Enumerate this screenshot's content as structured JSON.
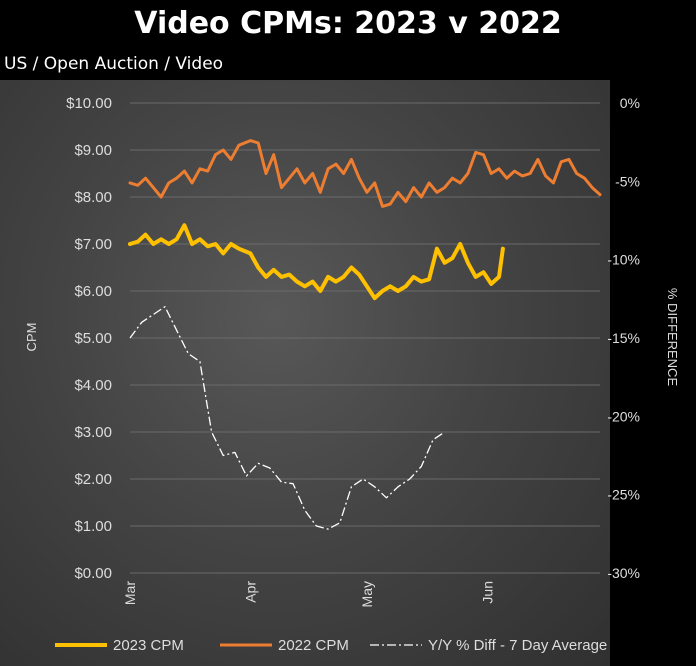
{
  "chart_data": {
    "type": "line",
    "title": "Video CPMs: 2023 v 2022",
    "subtitle": "US / Open Auction / Video",
    "ylabel": "CPM",
    "y2label": "% DIFFERENCE",
    "ylim": [
      0,
      10
    ],
    "y2lim": [
      -30,
      0
    ],
    "yticks": [
      "$0.00",
      "$1.00",
      "$2.00",
      "$3.00",
      "$4.00",
      "$5.00",
      "$6.00",
      "$7.00",
      "$8.00",
      "$9.00",
      "$10.00"
    ],
    "y2ticks": [
      "-30%",
      "-25%",
      "-20%",
      "-15%",
      "-10%",
      "-5%",
      "0%"
    ],
    "xlim": [
      "2023-03-01",
      "2023-06-30"
    ],
    "xticks": [
      {
        "label": "Mar",
        "date": "2023-03-01"
      },
      {
        "label": "Apr",
        "date": "2023-04-01"
      },
      {
        "label": "May",
        "date": "2023-05-01"
      },
      {
        "label": "Jun",
        "date": "2023-06-01"
      }
    ],
    "grid": true,
    "legend_position": "bottom",
    "series": [
      {
        "name": "2022 CPM",
        "axis": "left",
        "color": "#ed7d31",
        "style": "solid",
        "points": [
          [
            "2023-03-01",
            8.3
          ],
          [
            "2023-03-03",
            8.25
          ],
          [
            "2023-03-05",
            8.4
          ],
          [
            "2023-03-07",
            8.2
          ],
          [
            "2023-03-09",
            8.0
          ],
          [
            "2023-03-11",
            8.3
          ],
          [
            "2023-03-13",
            8.4
          ],
          [
            "2023-03-15",
            8.55
          ],
          [
            "2023-03-17",
            8.3
          ],
          [
            "2023-03-19",
            8.6
          ],
          [
            "2023-03-21",
            8.55
          ],
          [
            "2023-03-23",
            8.9
          ],
          [
            "2023-03-25",
            9.0
          ],
          [
            "2023-03-27",
            8.8
          ],
          [
            "2023-03-29",
            9.1
          ],
          [
            "2023-04-01",
            9.2
          ],
          [
            "2023-04-03",
            9.15
          ],
          [
            "2023-04-05",
            8.5
          ],
          [
            "2023-04-07",
            8.9
          ],
          [
            "2023-04-09",
            8.2
          ],
          [
            "2023-04-11",
            8.4
          ],
          [
            "2023-04-13",
            8.6
          ],
          [
            "2023-04-15",
            8.3
          ],
          [
            "2023-04-17",
            8.5
          ],
          [
            "2023-04-19",
            8.1
          ],
          [
            "2023-04-21",
            8.6
          ],
          [
            "2023-04-23",
            8.7
          ],
          [
            "2023-04-25",
            8.5
          ],
          [
            "2023-04-27",
            8.8
          ],
          [
            "2023-04-29",
            8.4
          ],
          [
            "2023-05-01",
            8.1
          ],
          [
            "2023-05-03",
            8.3
          ],
          [
            "2023-05-05",
            7.8
          ],
          [
            "2023-05-07",
            7.85
          ],
          [
            "2023-05-09",
            8.1
          ],
          [
            "2023-05-11",
            7.9
          ],
          [
            "2023-05-13",
            8.2
          ],
          [
            "2023-05-15",
            8.0
          ],
          [
            "2023-05-17",
            8.3
          ],
          [
            "2023-05-19",
            8.1
          ],
          [
            "2023-05-21",
            8.2
          ],
          [
            "2023-05-23",
            8.4
          ],
          [
            "2023-05-25",
            8.3
          ],
          [
            "2023-05-27",
            8.5
          ],
          [
            "2023-05-29",
            8.95
          ],
          [
            "2023-05-31",
            8.9
          ],
          [
            "2023-06-02",
            8.5
          ],
          [
            "2023-06-04",
            8.6
          ],
          [
            "2023-06-06",
            8.4
          ],
          [
            "2023-06-08",
            8.55
          ],
          [
            "2023-06-10",
            8.45
          ],
          [
            "2023-06-12",
            8.5
          ],
          [
            "2023-06-14",
            8.8
          ],
          [
            "2023-06-16",
            8.45
          ],
          [
            "2023-06-18",
            8.3
          ],
          [
            "2023-06-20",
            8.75
          ],
          [
            "2023-06-22",
            8.8
          ],
          [
            "2023-06-24",
            8.5
          ],
          [
            "2023-06-26",
            8.4
          ],
          [
            "2023-06-28",
            8.2
          ],
          [
            "2023-06-30",
            8.05
          ]
        ]
      },
      {
        "name": "2023 CPM",
        "axis": "left",
        "color": "#ffc000",
        "style": "solid",
        "points": [
          [
            "2023-03-01",
            7.0
          ],
          [
            "2023-03-03",
            7.05
          ],
          [
            "2023-03-05",
            7.2
          ],
          [
            "2023-03-07",
            7.0
          ],
          [
            "2023-03-09",
            7.1
          ],
          [
            "2023-03-11",
            7.0
          ],
          [
            "2023-03-13",
            7.1
          ],
          [
            "2023-03-15",
            7.4
          ],
          [
            "2023-03-17",
            7.0
          ],
          [
            "2023-03-19",
            7.1
          ],
          [
            "2023-03-21",
            6.95
          ],
          [
            "2023-03-23",
            7.0
          ],
          [
            "2023-03-25",
            6.8
          ],
          [
            "2023-03-27",
            7.0
          ],
          [
            "2023-03-29",
            6.9
          ],
          [
            "2023-04-01",
            6.8
          ],
          [
            "2023-04-03",
            6.5
          ],
          [
            "2023-04-05",
            6.3
          ],
          [
            "2023-04-07",
            6.45
          ],
          [
            "2023-04-09",
            6.3
          ],
          [
            "2023-04-11",
            6.35
          ],
          [
            "2023-04-13",
            6.2
          ],
          [
            "2023-04-15",
            6.1
          ],
          [
            "2023-04-17",
            6.2
          ],
          [
            "2023-04-19",
            6.0
          ],
          [
            "2023-04-21",
            6.3
          ],
          [
            "2023-04-23",
            6.2
          ],
          [
            "2023-04-25",
            6.3
          ],
          [
            "2023-04-27",
            6.5
          ],
          [
            "2023-04-29",
            6.35
          ],
          [
            "2023-05-01",
            6.1
          ],
          [
            "2023-05-03",
            5.85
          ],
          [
            "2023-05-05",
            6.0
          ],
          [
            "2023-05-07",
            6.1
          ],
          [
            "2023-05-09",
            6.0
          ],
          [
            "2023-05-11",
            6.1
          ],
          [
            "2023-05-13",
            6.3
          ],
          [
            "2023-05-15",
            6.2
          ],
          [
            "2023-05-17",
            6.25
          ],
          [
            "2023-05-19",
            6.9
          ],
          [
            "2023-05-21",
            6.6
          ],
          [
            "2023-05-23",
            6.7
          ],
          [
            "2023-05-25",
            7.0
          ],
          [
            "2023-05-27",
            6.6
          ],
          [
            "2023-05-29",
            6.3
          ],
          [
            "2023-05-31",
            6.4
          ],
          [
            "2023-06-02",
            6.15
          ],
          [
            "2023-06-04",
            6.3
          ],
          [
            "2023-06-05",
            6.9
          ]
        ]
      },
      {
        "name": "Y/Y % Diff - 7 Day Average",
        "axis": "right",
        "color": "#ffffff",
        "style": "dashdot",
        "points": [
          [
            "2023-03-01",
            -15.0
          ],
          [
            "2023-03-04",
            -14.0
          ],
          [
            "2023-03-07",
            -13.5
          ],
          [
            "2023-03-10",
            -13.0
          ],
          [
            "2023-03-13",
            -14.5
          ],
          [
            "2023-03-16",
            -16.0
          ],
          [
            "2023-03-19",
            -16.5
          ],
          [
            "2023-03-22",
            -21.0
          ],
          [
            "2023-03-25",
            -22.5
          ],
          [
            "2023-03-28",
            -22.3
          ],
          [
            "2023-03-31",
            -23.8
          ],
          [
            "2023-04-03",
            -23.0
          ],
          [
            "2023-04-06",
            -23.3
          ],
          [
            "2023-04-09",
            -24.2
          ],
          [
            "2023-04-12",
            -24.3
          ],
          [
            "2023-04-15",
            -26.0
          ],
          [
            "2023-04-18",
            -27.0
          ],
          [
            "2023-04-21",
            -27.2
          ],
          [
            "2023-04-24",
            -26.8
          ],
          [
            "2023-04-27",
            -24.5
          ],
          [
            "2023-04-30",
            -24.0
          ],
          [
            "2023-05-03",
            -24.5
          ],
          [
            "2023-05-06",
            -25.2
          ],
          [
            "2023-05-09",
            -24.5
          ],
          [
            "2023-05-12",
            -24.0
          ],
          [
            "2023-05-15",
            -23.2
          ],
          [
            "2023-05-18",
            -21.5
          ],
          [
            "2023-05-21",
            -21.0
          ]
        ]
      }
    ]
  }
}
